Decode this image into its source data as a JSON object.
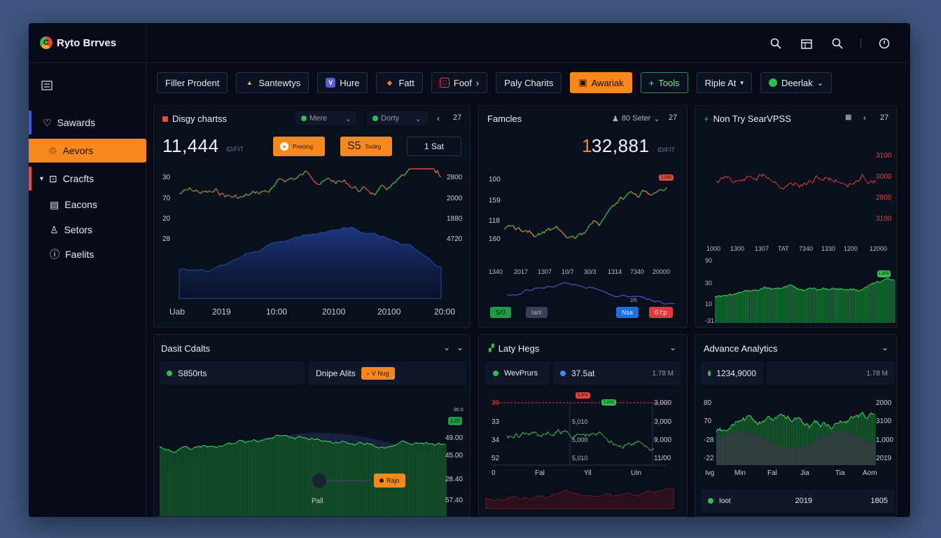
{
  "app": {
    "title": "Ryto Brrves"
  },
  "sidebar": {
    "items": [
      {
        "label": "Sawards",
        "icon": "heart-icon",
        "accent": "#3b5bdb"
      },
      {
        "label": "Aevors",
        "icon": "bell-icon",
        "active": true
      },
      {
        "label": "Cracfts",
        "icon": "chart-icon",
        "accent": "#e5483c"
      },
      {
        "label": "Eacons",
        "icon": "calendar-icon"
      },
      {
        "label": "Setors",
        "icon": "user-icon"
      },
      {
        "label": "Faelits",
        "icon": "info-icon"
      }
    ]
  },
  "filters": [
    {
      "label": "Filler Prodent",
      "style": "plain"
    },
    {
      "label": "Santewtys",
      "style": "plain",
      "icon": "triangle-icon"
    },
    {
      "label": "Hure",
      "style": "plain",
      "icon": "v-icon"
    },
    {
      "label": "Fatt",
      "style": "plain",
      "icon": "shield-icon"
    },
    {
      "label": "Foof",
      "style": "plain",
      "icon": "square-icon"
    },
    {
      "label": "Paly Charits",
      "style": "plain"
    },
    {
      "label": "Awariak",
      "style": "orange"
    },
    {
      "label": "Tools",
      "style": "green"
    },
    {
      "label": "Riple At",
      "style": "plain"
    },
    {
      "label": "Deerlak",
      "style": "plain"
    }
  ],
  "colors": {
    "accent": "#f7881d",
    "up": "#2fbf4f",
    "down": "#e5483c",
    "blue": "#1f3a8a"
  },
  "panel1": {
    "title": "Disgy chartss",
    "dd1": "Mere",
    "dd2": "Dorty",
    "page": "27",
    "big_value": "11,444",
    "big_unit": "ID/FIT",
    "tag1": "Pxeoing",
    "tag2": "S5",
    "tag2_small": "Sxdirg",
    "tag3": "1 Sat",
    "y_left": [
      "30",
      "70",
      "20",
      "28"
    ],
    "y_right": [
      "2800",
      "2000",
      "1880",
      "4720"
    ],
    "x_labels": [
      "Uab",
      "2019",
      "10:00",
      "20100",
      "20100",
      "20:00"
    ]
  },
  "panel2": {
    "title": "Famcles",
    "setter": "80 Seter",
    "page": "27",
    "big_value": "132,881",
    "big_unit": "ID/FIT",
    "y_left": [
      "100",
      "159",
      "118",
      "160"
    ],
    "x_labels": [
      "1340",
      "2017",
      "1307",
      "10/7",
      "30/3",
      "1314",
      "7340",
      "20000"
    ],
    "price_tag": "2,000",
    "mini_label": "2/5",
    "chips": [
      "S/0",
      "Ianl",
      "Nsa",
      "0 f:p"
    ]
  },
  "panel3": {
    "title": "Non Try SearVPSS",
    "page": "27",
    "y_right": [
      "3100",
      "3000",
      "2800",
      "3100"
    ],
    "x_labels": [
      "1000",
      "1300",
      "1307",
      "TAT",
      "7340",
      "1330",
      "1200",
      "12000"
    ],
    "y_left": [
      "90",
      "30",
      "10",
      "-31"
    ],
    "price_tag": "1,800"
  },
  "panel4": {
    "title": "Dasit Cdalts",
    "sub1": "S850rts",
    "sub2": "Dnipe Alits",
    "sub2_tag": "V Nug",
    "y_right": [
      "49.00",
      "45.00",
      "28.40",
      "57.40"
    ],
    "edge_tag": "1,25",
    "edge_label": "90.0",
    "slider_tag": "Rajo",
    "x_label": "Pall"
  },
  "panel5": {
    "title": "Laty Hegs",
    "sub1": "WevPrurs",
    "sub2": "37.5at",
    "sub2_right": "1.78 M",
    "y_left": [
      "39",
      "33",
      "34",
      "52"
    ],
    "mid_labels": [
      "5,010",
      "5,000",
      "5,010"
    ],
    "y_right": [
      "3,000",
      "3,000",
      "9,000",
      "11/00"
    ],
    "x_labels": [
      "0",
      "Fal",
      "Yil",
      "Uin"
    ],
    "tags": [
      "5,000",
      "5,000"
    ]
  },
  "panel6": {
    "title": "Advance Analytics",
    "sub1": "1234,9000",
    "sub1_right": "1.78 M",
    "y_left": [
      "80",
      "70",
      "-28",
      "-22"
    ],
    "y_right": [
      "2000",
      "3100",
      "1,000",
      "2019"
    ],
    "x_labels": [
      "Ivg",
      "Min",
      "Fal",
      "Jia",
      "Tia",
      "Aom"
    ],
    "footer": {
      "left": "Ioot",
      "mid": "2019",
      "right": "1805"
    }
  }
}
